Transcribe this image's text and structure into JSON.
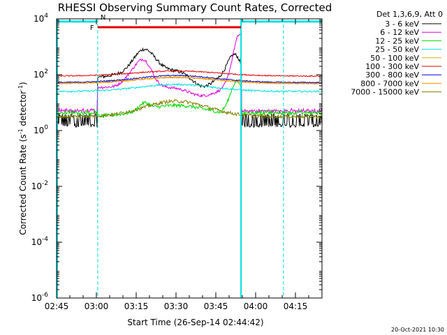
{
  "chart_data": {
    "type": "line",
    "title": "RHESSI Observing Summary Count Rates, Corrected",
    "xlabel": "Start Time (26-Sep-14 02:44:42)",
    "ylabel_main": "Corrected Count Rate (s",
    "ylabel_sup1": "-1",
    "ylabel_mid": " detector",
    "ylabel_sup2": "-1",
    "ylabel_end": ")",
    "y_scale": "log",
    "xlim_minutes_after_0245": [
      0,
      100
    ],
    "ylim": [
      1e-06,
      10000
    ],
    "x_ticks": [
      "02:45",
      "03:00",
      "03:15",
      "03:30",
      "03:45",
      "04:00",
      "04:15"
    ],
    "x_tick_minutes_after_0245": [
      0,
      15,
      30,
      45,
      60,
      75,
      90
    ],
    "y_ticks": [
      {
        "base": "10",
        "exp": "-6",
        "value": 1e-06
      },
      {
        "base": "10",
        "exp": "-4",
        "value": 0.0001
      },
      {
        "base": "10",
        "exp": "-2",
        "value": 0.01
      },
      {
        "base": "10",
        "exp": "0",
        "value": 1
      },
      {
        "base": "10",
        "exp": "2",
        "value": 100
      },
      {
        "base": "10",
        "exp": "4",
        "value": 10000
      }
    ],
    "legend_header": "Det 1,3,6,9, Att 0",
    "legend_position": "outside-right",
    "series": [
      {
        "name": "3 - 6 keV",
        "color": "#000000"
      },
      {
        "name": "6 - 12 keV",
        "color": "#e000e0"
      },
      {
        "name": "12 - 25 keV",
        "color": "#00d800"
      },
      {
        "name": "25 - 50 keV",
        "color": "#00e0e0"
      },
      {
        "name": "50 - 100 keV",
        "color": "#e0b000"
      },
      {
        "name": "100 - 300 keV",
        "color": "#e00000"
      },
      {
        "name": "300 - 800 keV",
        "color": "#0000e0"
      },
      {
        "name": "800 - 7000 keV",
        "color": "#ff8c00"
      },
      {
        "name": "7000 - 15000 keV",
        "color": "#808000"
      }
    ],
    "flags": [
      {
        "label": "N",
        "color": "#00e0e0",
        "segments_minutes": [
          [
            0,
            15.5
          ],
          [
            69.5,
            100
          ]
        ],
        "value": 8000
      },
      {
        "label": "F",
        "color": "#e00000",
        "segments_minutes": [
          [
            15.5,
            69.5
          ]
        ],
        "value": 5000
      }
    ],
    "vertical_markers_minutes": [
      {
        "minute": 15.5,
        "style": "dashed",
        "color": "#00e0e0"
      },
      {
        "minute": 69.5,
        "style": "solid",
        "color": "#00e0e0"
      },
      {
        "minute": 85.5,
        "style": "dashed",
        "color": "#00e0e0"
      }
    ],
    "footer_timestamp": "20-Oct-2021 10:30"
  }
}
